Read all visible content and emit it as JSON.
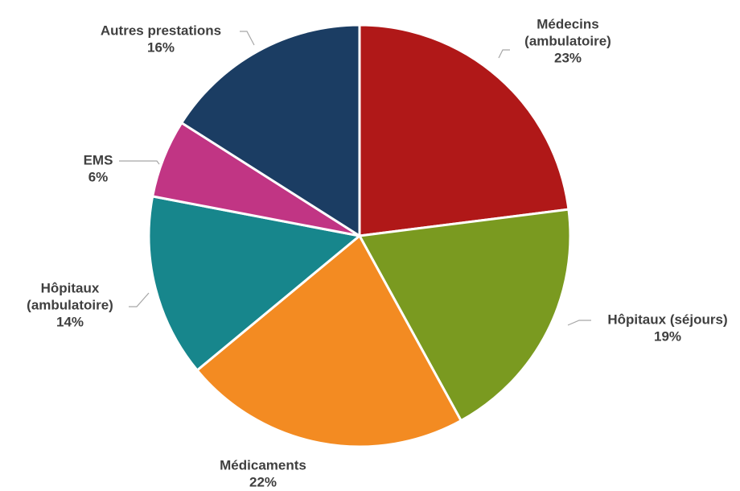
{
  "chart_data": {
    "type": "pie",
    "title": "",
    "legend": "none",
    "start_angle_deg": 0,
    "direction": "clockwise",
    "slices": [
      {
        "label_lines": [
          "Médecins",
          "(ambulatoire)"
        ],
        "value": 23,
        "value_label": "23%",
        "color": "#b01818"
      },
      {
        "label_lines": [
          "Hôpitaux (séjours)"
        ],
        "value": 19,
        "value_label": "19%",
        "color": "#7a9a20"
      },
      {
        "label_lines": [
          "Médicaments"
        ],
        "value": 22,
        "value_label": "22%",
        "color": "#f38b22"
      },
      {
        "label_lines": [
          "Hôpitaux",
          "(ambulatoire)"
        ],
        "value": 14,
        "value_label": "14%",
        "color": "#17868c"
      },
      {
        "label_lines": [
          "EMS"
        ],
        "value": 6,
        "value_label": "6%",
        "color": "#c13584"
      },
      {
        "label_lines": [
          "Autres prestations"
        ],
        "value": 16,
        "value_label": "16%",
        "color": "#1b3d63"
      }
    ]
  }
}
